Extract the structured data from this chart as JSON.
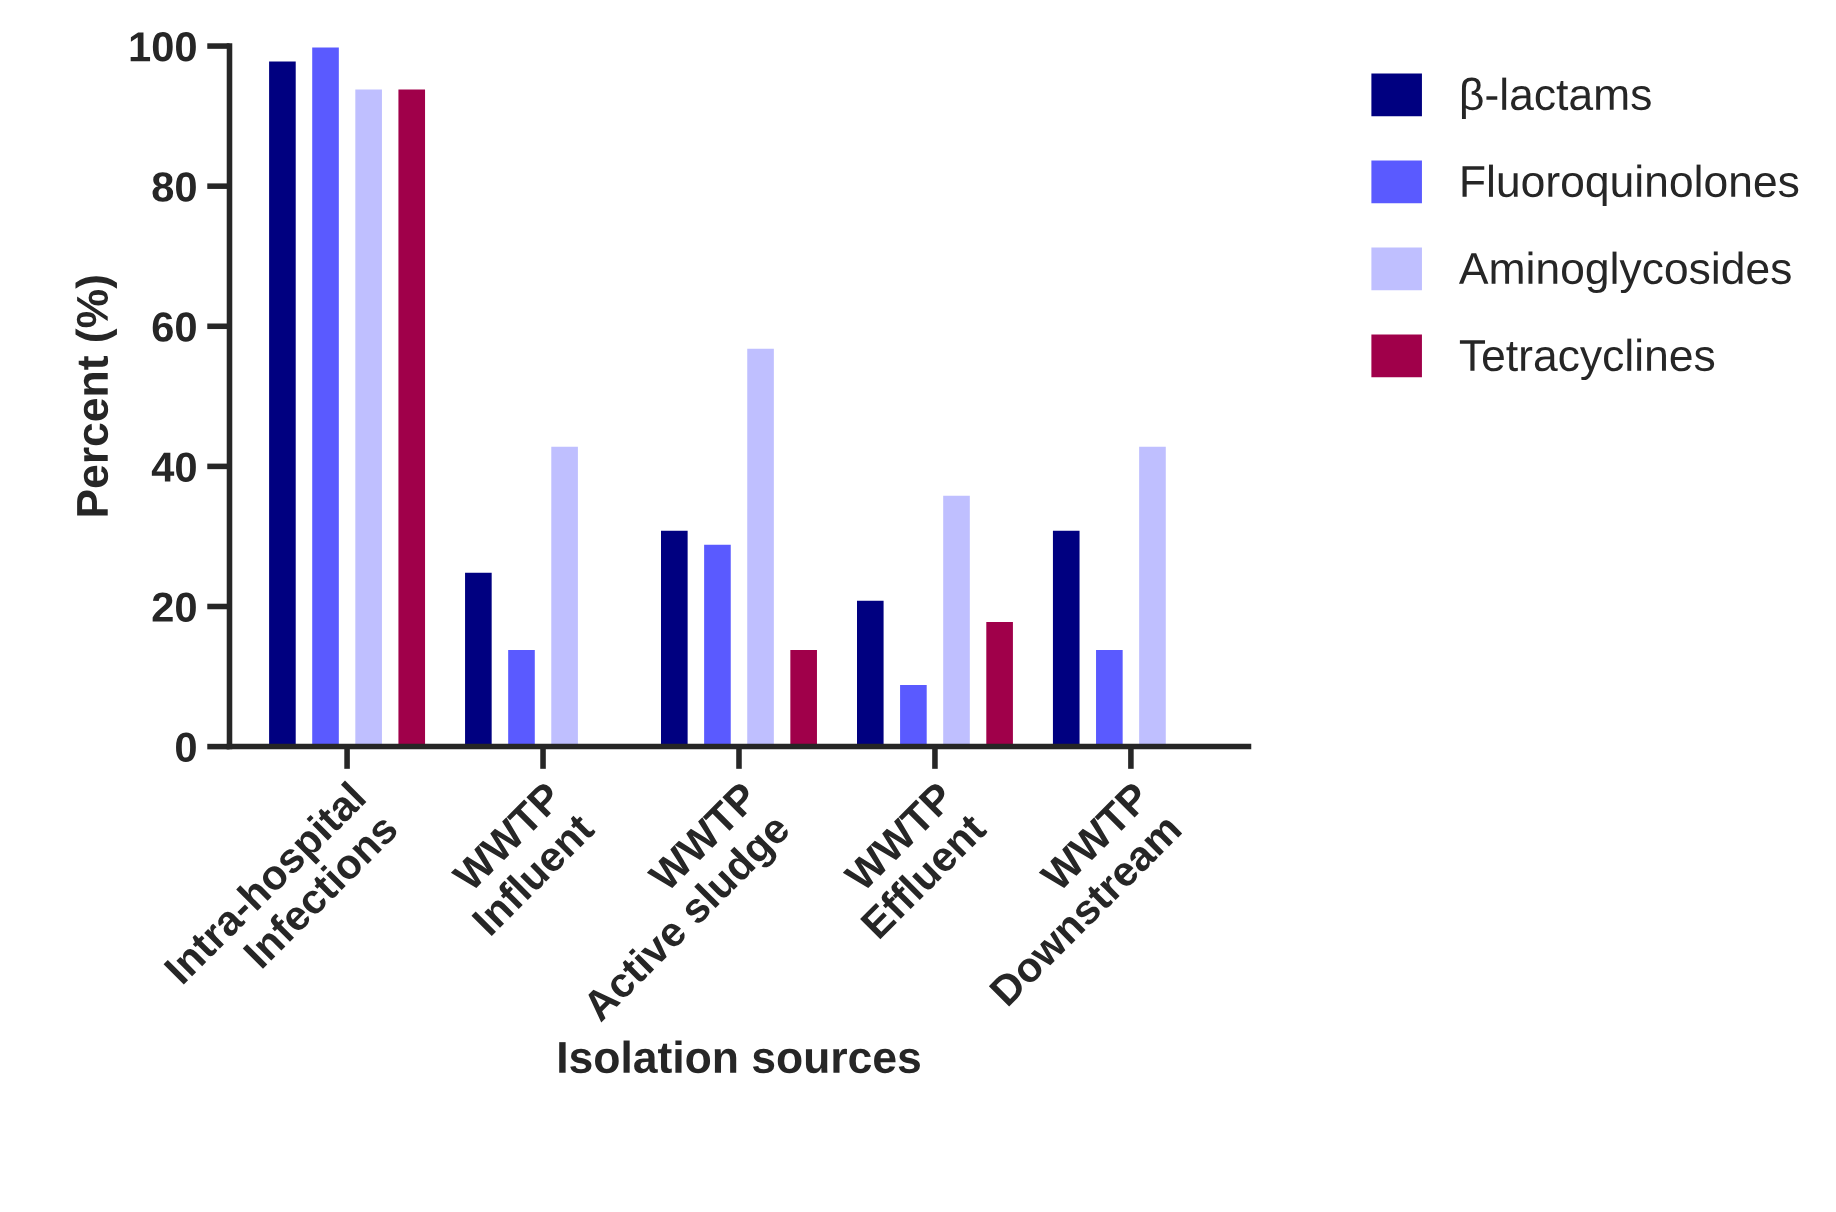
{
  "chart_data": {
    "type": "bar",
    "xlabel": "Isolation sources",
    "ylabel": "Percent (%)",
    "categories": [
      "Intra-hospital\nInfections",
      "WWTP\nInfluent",
      "WWTP\nActive sludge",
      "WWTP\nEffluent",
      "WWTP\nDownstream"
    ],
    "series": [
      {
        "name": "β-lactams",
        "color": "#000080",
        "values": [
          98,
          25,
          31,
          21,
          31
        ]
      },
      {
        "name": "Fluoroquinolones",
        "color": "#5a5aff",
        "values": [
          100,
          14,
          29,
          9,
          14
        ]
      },
      {
        "name": "Aminoglycosides",
        "color": "#bfbfff",
        "values": [
          94,
          43,
          57,
          36,
          43
        ]
      },
      {
        "name": "Tetracyclines",
        "color": "#a0004a",
        "values": [
          94,
          null,
          14,
          18,
          null
        ]
      }
    ],
    "ylim": [
      0,
      100
    ],
    "yticks": [
      0,
      20,
      40,
      60,
      80,
      100
    ],
    "grid": false,
    "legend": "top right"
  }
}
